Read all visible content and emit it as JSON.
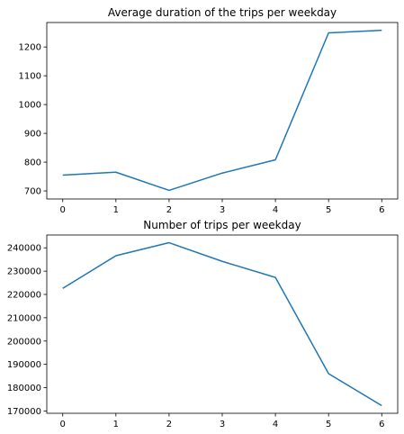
{
  "chart_data": [
    {
      "type": "line",
      "title": "Average duration of the trips per weekday",
      "xlabel": "",
      "ylabel": "",
      "x": [
        0,
        1,
        2,
        3,
        4,
        5,
        6
      ],
      "values": [
        755,
        765,
        702,
        762,
        808,
        1249,
        1258
      ],
      "xlim": [
        -0.3,
        6.3
      ],
      "ylim": [
        672,
        1285
      ],
      "xticks": [
        "0",
        "1",
        "2",
        "3",
        "4",
        "5",
        "6"
      ],
      "yticks": [
        700,
        800,
        900,
        1000,
        1100,
        1200
      ],
      "grid": false,
      "color": "#1f77b4"
    },
    {
      "type": "line",
      "title": "Number of trips per weekday",
      "xlabel": "",
      "ylabel": "",
      "x": [
        0,
        1,
        2,
        3,
        4,
        5,
        6
      ],
      "values": [
        222600,
        236600,
        242200,
        234200,
        227300,
        186000,
        172300
      ],
      "xlim": [
        -0.3,
        6.3
      ],
      "ylim": [
        169000,
        245500
      ],
      "xticks": [
        "0",
        "1",
        "2",
        "3",
        "4",
        "5",
        "6"
      ],
      "yticks": [
        170000,
        180000,
        190000,
        200000,
        210000,
        220000,
        230000,
        240000
      ],
      "grid": false,
      "color": "#1f77b4"
    }
  ]
}
